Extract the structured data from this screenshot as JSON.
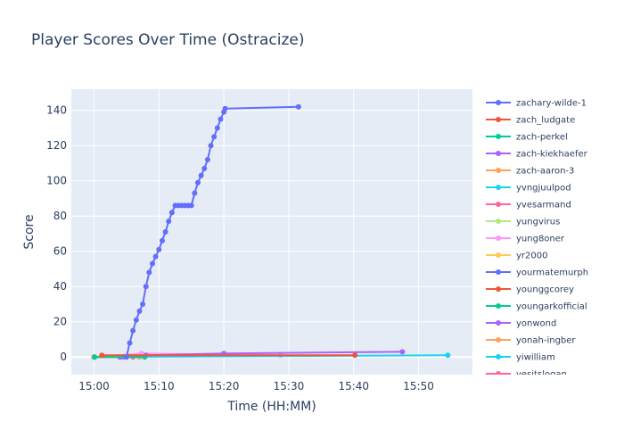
{
  "chart_data": {
    "type": "line",
    "title": "Player Scores Over Time (Ostracize)",
    "xlabel": "Time (HH:MM)",
    "ylabel": "Score",
    "x_ticks": [
      "15:00",
      "15:10",
      "15:20",
      "15:30",
      "15:40",
      "15:50"
    ],
    "y_ticks": [
      0,
      20,
      40,
      60,
      80,
      100,
      120,
      140
    ],
    "xlim_minutes": [
      -3.5,
      58.3
    ],
    "ylim": [
      -10,
      152
    ],
    "grid": true,
    "legend_position": "right",
    "series": [
      {
        "name": "zachary-wilde-1",
        "color": "#636efa",
        "x": [
          "15:05:00",
          "15:05:30",
          "15:06:00",
          "15:06:30",
          "15:07:00",
          "15:07:30",
          "15:08:00",
          "15:08:30",
          "15:09:00",
          "15:09:30",
          "15:10:00",
          "15:10:30",
          "15:11:00",
          "15:11:30",
          "15:12:00",
          "15:12:30",
          "15:13:00",
          "15:13:30",
          "15:14:00",
          "15:14:30",
          "15:15:00",
          "15:15:30",
          "15:16:00",
          "15:16:30",
          "15:17:00",
          "15:17:30",
          "15:18:00",
          "15:18:30",
          "15:19:00",
          "15:19:30",
          "15:20:00",
          "15:20:12",
          "15:31:30"
        ],
        "y": [
          0,
          8,
          15,
          21,
          26,
          30,
          40,
          48,
          53,
          57,
          61,
          66,
          71,
          77,
          82,
          86,
          86,
          86,
          86,
          86,
          86,
          93,
          99,
          103,
          107,
          112,
          120,
          125,
          130,
          135,
          139,
          141,
          142
        ]
      },
      {
        "name": "zach_ludgate",
        "color": "#ef553b",
        "x": [
          "15:01:12",
          "15:40:12"
        ],
        "y": [
          1,
          1
        ]
      },
      {
        "name": "zach-perkel",
        "color": "#00cc96",
        "x": [
          "15:00:06",
          "15:07:48"
        ],
        "y": [
          0,
          0
        ]
      },
      {
        "name": "zach-kiekhaefer",
        "color": "#ab63fa",
        "x": [
          "15:04:30",
          "15:08:00",
          "15:20:00",
          "15:47:30"
        ],
        "y": [
          0,
          1,
          2,
          3
        ]
      },
      {
        "name": "zach-aaron-3",
        "color": "#ffa15a",
        "x": [
          "15:00:00",
          "15:07:00"
        ],
        "y": [
          0,
          0
        ]
      },
      {
        "name": "yvngjuulpod",
        "color": "#19d3f3",
        "x": [
          "15:00:00",
          "15:54:30"
        ],
        "y": [
          0,
          1
        ]
      },
      {
        "name": "yvesarmand",
        "color": "#ff6692",
        "x": [
          "15:00:00",
          "15:06:00"
        ],
        "y": [
          0,
          0
        ]
      },
      {
        "name": "yungvirus",
        "color": "#b6e880",
        "x": [
          "15:00:00",
          "15:05:00"
        ],
        "y": [
          0,
          0
        ]
      },
      {
        "name": "yung8oner",
        "color": "#ff97ff",
        "x": [
          "15:00:00",
          "15:07:18",
          "15:28:42"
        ],
        "y": [
          0,
          2,
          1
        ]
      },
      {
        "name": "yr2000",
        "color": "#fecb52",
        "x": [
          "15:00:00"
        ],
        "y": [
          0
        ]
      },
      {
        "name": "yourmatemurph",
        "color": "#636efa",
        "x": [
          "15:00:00",
          "15:04:00"
        ],
        "y": [
          0,
          0
        ]
      },
      {
        "name": "younggcorey",
        "color": "#ef553b",
        "x": [
          "15:00:00"
        ],
        "y": [
          0
        ]
      },
      {
        "name": "youngarkofficial",
        "color": "#00cc96",
        "x": [
          "15:00:00"
        ],
        "y": [
          0
        ]
      },
      {
        "name": "yonwond",
        "color": "#ab63fa",
        "x": [
          "15:00:00"
        ],
        "y": [
          0
        ]
      },
      {
        "name": "yonah-ingber",
        "color": "#ffa15a",
        "x": [
          "15:00:00"
        ],
        "y": [
          0
        ]
      },
      {
        "name": "yiwilliam",
        "color": "#19d3f3",
        "x": [
          "15:00:00"
        ],
        "y": [
          0
        ]
      },
      {
        "name": "yesitslogan",
        "color": "#ff6692",
        "x": [
          "15:00:00"
        ],
        "y": [
          0
        ]
      }
    ]
  }
}
